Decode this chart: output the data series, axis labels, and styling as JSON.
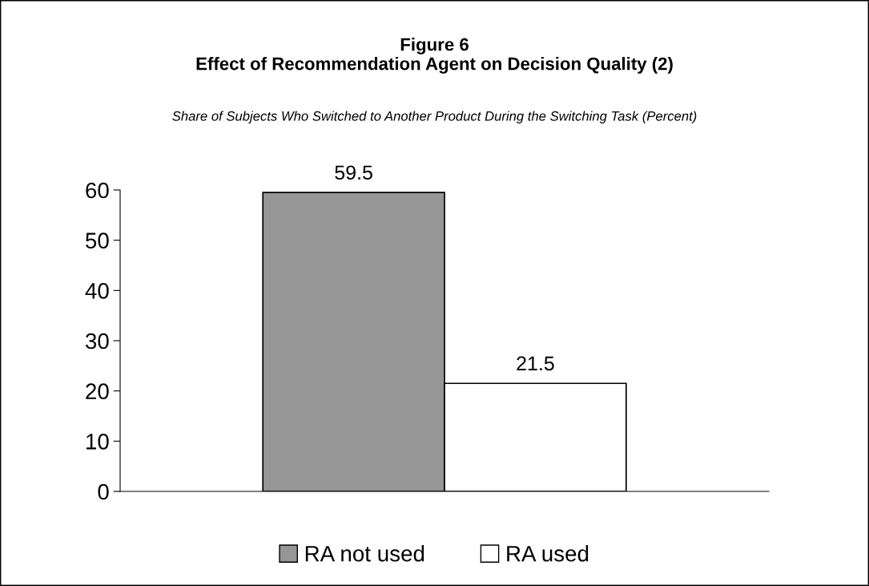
{
  "chart_data": {
    "type": "bar",
    "title": "Figure 6\nEffect of Recommendation Agent on Decision Quality (2)",
    "subtitle": "Share of Subjects Who Switched to Another Product During the Switching Task (Percent)",
    "categories": [
      null
    ],
    "series": [
      {
        "name": "RA not used",
        "color": "#969696",
        "values": [
          59.5
        ]
      },
      {
        "name": "RA used",
        "color": "#ffffff",
        "values": [
          21.5
        ]
      }
    ],
    "ylim": [
      0,
      60
    ],
    "yticks": [
      0,
      10,
      20,
      30,
      40,
      50,
      60
    ],
    "grid": false,
    "legend": "bottom",
    "data_labels": true
  }
}
